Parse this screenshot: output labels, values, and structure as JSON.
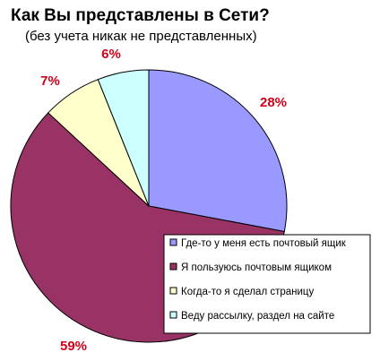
{
  "chart_data": {
    "type": "pie",
    "title": "Как Вы представлены в Сети?",
    "subtitle": "(без учета никак не представленных)",
    "categories": [
      "Где-то у меня есть почтовый ящик",
      "Я пользуюсь почтовым ящиком",
      "Когда-то я сделал страницу",
      "Веду рассылку, раздел на сайте"
    ],
    "values": [
      28,
      59,
      7,
      6
    ],
    "data_labels": [
      "28%",
      "59%",
      "7%",
      "6%"
    ],
    "unit": "%",
    "colors": [
      "#9999ff",
      "#993366",
      "#ffffcc",
      "#ccffff"
    ],
    "label_color": "#d0021b",
    "start_angle_deg": 0,
    "direction": "clockwise",
    "legend_position": "right"
  }
}
